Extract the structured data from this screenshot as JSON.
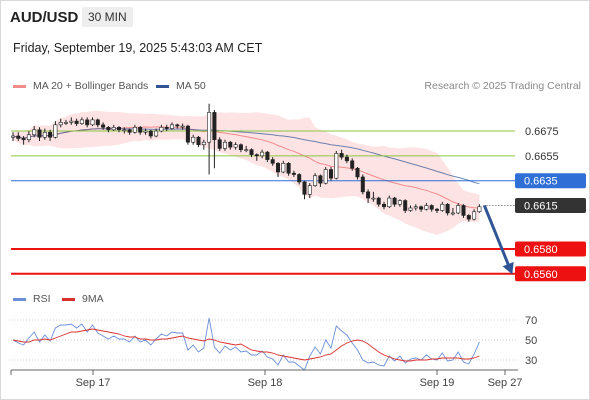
{
  "header": {
    "pair": "AUD/USD",
    "timeframe": "30 MIN",
    "datetime": "Friday, September 19, 2025 5:43:03 AM CET"
  },
  "legend": {
    "ma20_label": "MA 20 + Bollinger Bands",
    "ma50_label": "MA 50",
    "credit": "Research © 2025 Trading Central",
    "rsi_label": "RSI",
    "rsi_ma_label": "9MA"
  },
  "colors": {
    "ma20": "#f28c8c",
    "ma50": "#2f5597",
    "bollinger": "#fddede",
    "resistance_line": "#8cc63f",
    "pivot_line": "#2f6fd6",
    "support_line": "#ee1111",
    "current_price_tag": "#333333",
    "rsi": "#6b8fd6",
    "rsi_ma": "#d9302c"
  },
  "chart_data": [
    {
      "type": "candlestick",
      "title": "AUD/USD",
      "timeframe": "30 MIN",
      "x_tick_labels": [
        "Sep 17",
        "Sep 18",
        "Sep 19",
        "Sep 27"
      ],
      "ylim": [
        0.6555,
        0.67
      ],
      "levels": [
        {
          "price": 0.6675,
          "label": "0.6675",
          "kind": "resistance"
        },
        {
          "price": 0.6655,
          "label": "0.6655",
          "kind": "resistance"
        },
        {
          "price": 0.6635,
          "label": "0.6635",
          "kind": "pivot"
        },
        {
          "price": 0.6615,
          "label": "0.6615",
          "kind": "current"
        },
        {
          "price": 0.658,
          "label": "0.6580",
          "kind": "support"
        },
        {
          "price": 0.656,
          "label": "0.6560",
          "kind": "support"
        }
      ],
      "close": [
        0.6671,
        0.6669,
        0.6668,
        0.6672,
        0.6676,
        0.667,
        0.6674,
        0.667,
        0.668,
        0.6682,
        0.6682,
        0.6683,
        0.6681,
        0.6684,
        0.668,
        0.6684,
        0.668,
        0.6678,
        0.6676,
        0.6678,
        0.6676,
        0.6676,
        0.6674,
        0.6678,
        0.6674,
        0.6675,
        0.6671,
        0.6675,
        0.6678,
        0.6677,
        0.668,
        0.6679,
        0.6679,
        0.6666,
        0.667,
        0.6664,
        0.6666,
        0.669,
        0.6668,
        0.6661,
        0.6666,
        0.6662,
        0.6664,
        0.666,
        0.666,
        0.6656,
        0.6655,
        0.6658,
        0.6652,
        0.6649,
        0.6642,
        0.6649,
        0.6641,
        0.664,
        0.6634,
        0.6624,
        0.6631,
        0.6639,
        0.6633,
        0.6644,
        0.6637,
        0.6657,
        0.6654,
        0.6651,
        0.6645,
        0.6638,
        0.6626,
        0.6621,
        0.6621,
        0.6616,
        0.6614,
        0.6621,
        0.6616,
        0.6619,
        0.6611,
        0.6613,
        0.6614,
        0.6612,
        0.6615,
        0.6612,
        0.6611,
        0.6616,
        0.6609,
        0.6609,
        0.6615,
        0.6607,
        0.6604,
        0.661,
        0.6614
      ],
      "prices": [
        [
          0.667,
          0.6674,
          0.6667,
          0.6671
        ],
        [
          0.6671,
          0.6674,
          0.6667,
          0.6669
        ],
        [
          0.6669,
          0.6671,
          0.6664,
          0.6668
        ],
        [
          0.6668,
          0.6675,
          0.6666,
          0.6672
        ],
        [
          0.6672,
          0.6679,
          0.667,
          0.6676
        ],
        [
          0.6676,
          0.6678,
          0.6667,
          0.667
        ],
        [
          0.667,
          0.6677,
          0.6668,
          0.6674
        ],
        [
          0.6674,
          0.6676,
          0.6667,
          0.667
        ],
        [
          0.667,
          0.6683,
          0.6669,
          0.668
        ],
        [
          0.668,
          0.6685,
          0.6678,
          0.6682
        ],
        [
          0.6682,
          0.6684,
          0.668,
          0.6682
        ],
        [
          0.6682,
          0.6686,
          0.668,
          0.6683
        ],
        [
          0.6683,
          0.6685,
          0.6679,
          0.6681
        ],
        [
          0.6681,
          0.6686,
          0.668,
          0.6684
        ],
        [
          0.6684,
          0.6686,
          0.6678,
          0.668
        ],
        [
          0.668,
          0.6686,
          0.6679,
          0.6684
        ],
        [
          0.6684,
          0.6685,
          0.6678,
          0.668
        ],
        [
          0.668,
          0.6682,
          0.6676,
          0.6678
        ],
        [
          0.6678,
          0.6679,
          0.6674,
          0.6676
        ],
        [
          0.6676,
          0.668,
          0.6675,
          0.6678
        ],
        [
          0.6678,
          0.6679,
          0.6674,
          0.6676
        ],
        [
          0.6676,
          0.6678,
          0.6673,
          0.6676
        ],
        [
          0.6676,
          0.6677,
          0.6672,
          0.6674
        ],
        [
          0.6674,
          0.668,
          0.6673,
          0.6678
        ],
        [
          0.6678,
          0.6679,
          0.6672,
          0.6674
        ],
        [
          0.6674,
          0.6677,
          0.6672,
          0.6675
        ],
        [
          0.6675,
          0.6676,
          0.6669,
          0.6671
        ],
        [
          0.6671,
          0.6677,
          0.667,
          0.6675
        ],
        [
          0.6675,
          0.668,
          0.6674,
          0.6678
        ],
        [
          0.6678,
          0.668,
          0.6675,
          0.6677
        ],
        [
          0.6677,
          0.6682,
          0.6676,
          0.668
        ],
        [
          0.668,
          0.6681,
          0.6677,
          0.6679
        ],
        [
          0.6679,
          0.6681,
          0.6676,
          0.6679
        ],
        [
          0.6679,
          0.668,
          0.6664,
          0.6666
        ],
        [
          0.6666,
          0.6672,
          0.6664,
          0.667
        ],
        [
          0.667,
          0.6671,
          0.6662,
          0.6664
        ],
        [
          0.6664,
          0.6668,
          0.666,
          0.6666
        ],
        [
          0.6666,
          0.6697,
          0.664,
          0.669
        ],
        [
          0.669,
          0.6692,
          0.6645,
          0.6668
        ],
        [
          0.6668,
          0.667,
          0.6659,
          0.6661
        ],
        [
          0.6661,
          0.6668,
          0.6659,
          0.6666
        ],
        [
          0.6666,
          0.6667,
          0.666,
          0.6662
        ],
        [
          0.6662,
          0.6666,
          0.666,
          0.6664
        ],
        [
          0.6664,
          0.6665,
          0.6658,
          0.666
        ],
        [
          0.666,
          0.6663,
          0.6658,
          0.666
        ],
        [
          0.666,
          0.6661,
          0.6654,
          0.6656
        ],
        [
          0.6656,
          0.6657,
          0.6651,
          0.6655
        ],
        [
          0.6655,
          0.666,
          0.6653,
          0.6658
        ],
        [
          0.6658,
          0.6659,
          0.665,
          0.6652
        ],
        [
          0.6652,
          0.6654,
          0.6647,
          0.6649
        ],
        [
          0.6649,
          0.665,
          0.6638,
          0.6642
        ],
        [
          0.6642,
          0.6651,
          0.6641,
          0.6649
        ],
        [
          0.6649,
          0.665,
          0.6639,
          0.6641
        ],
        [
          0.6641,
          0.6643,
          0.6638,
          0.664
        ],
        [
          0.664,
          0.6641,
          0.6632,
          0.6634
        ],
        [
          0.6634,
          0.6635,
          0.662,
          0.6624
        ],
        [
          0.6624,
          0.6633,
          0.6621,
          0.6631
        ],
        [
          0.6631,
          0.6641,
          0.663,
          0.6639
        ],
        [
          0.6639,
          0.664,
          0.663,
          0.6633
        ],
        [
          0.6633,
          0.6646,
          0.6632,
          0.6644
        ],
        [
          0.6644,
          0.6646,
          0.6635,
          0.6637
        ],
        [
          0.6637,
          0.6659,
          0.6636,
          0.6657
        ],
        [
          0.6657,
          0.666,
          0.6652,
          0.6654
        ],
        [
          0.6654,
          0.6656,
          0.6649,
          0.6651
        ],
        [
          0.6651,
          0.6653,
          0.6643,
          0.6645
        ],
        [
          0.6645,
          0.6646,
          0.6636,
          0.6638
        ],
        [
          0.6638,
          0.664,
          0.6624,
          0.6626
        ],
        [
          0.6626,
          0.6628,
          0.6617,
          0.6621
        ],
        [
          0.6621,
          0.6626,
          0.6618,
          0.6621
        ],
        [
          0.6621,
          0.6622,
          0.6614,
          0.6616
        ],
        [
          0.6616,
          0.6618,
          0.6612,
          0.6614
        ],
        [
          0.6614,
          0.6623,
          0.6613,
          0.6621
        ],
        [
          0.6621,
          0.6622,
          0.6614,
          0.6616
        ],
        [
          0.6616,
          0.662,
          0.6614,
          0.6619
        ],
        [
          0.6619,
          0.662,
          0.6609,
          0.6611
        ],
        [
          0.6611,
          0.6615,
          0.661,
          0.6613
        ],
        [
          0.6613,
          0.6616,
          0.6611,
          0.6614
        ],
        [
          0.6614,
          0.6615,
          0.661,
          0.6612
        ],
        [
          0.6612,
          0.6617,
          0.6611,
          0.6615
        ],
        [
          0.6615,
          0.6616,
          0.661,
          0.6612
        ],
        [
          0.6612,
          0.6613,
          0.6609,
          0.6611
        ],
        [
          0.6611,
          0.6618,
          0.661,
          0.6616
        ],
        [
          0.6616,
          0.6617,
          0.6607,
          0.6609
        ],
        [
          0.6609,
          0.6613,
          0.6607,
          0.6609
        ],
        [
          0.6609,
          0.6617,
          0.6608,
          0.6615
        ],
        [
          0.6615,
          0.6616,
          0.6605,
          0.6607
        ],
        [
          0.6607,
          0.6608,
          0.6602,
          0.6604
        ],
        [
          0.6604,
          0.6612,
          0.6603,
          0.661
        ],
        [
          0.661,
          0.6616,
          0.6609,
          0.6614
        ]
      ],
      "forecast": {
        "from": 0.6615,
        "to": 0.656
      },
      "legend": [
        "MA 20 + Bollinger Bands",
        "MA 50"
      ],
      "grid": false
    },
    {
      "type": "line",
      "series": [
        {
          "name": "RSI"
        },
        {
          "name": "9MA"
        }
      ],
      "y_tick_labels": [
        "70",
        "50",
        "30"
      ],
      "ylim": [
        22,
        78
      ],
      "rsi": [
        50,
        47,
        45,
        52,
        58,
        48,
        55,
        49,
        62,
        65,
        65,
        66,
        62,
        66,
        58,
        65,
        57,
        54,
        51,
        54,
        51,
        51,
        48,
        54,
        48,
        50,
        45,
        51,
        56,
        54,
        58,
        57,
        57,
        40,
        45,
        38,
        42,
        72,
        43,
        37,
        44,
        40,
        43,
        38,
        39,
        35,
        35,
        39,
        33,
        31,
        25,
        35,
        28,
        28,
        24,
        20,
        34,
        43,
        36,
        50,
        42,
        64,
        59,
        55,
        47,
        40,
        30,
        27,
        28,
        25,
        24,
        34,
        29,
        34,
        27,
        31,
        32,
        30,
        35,
        31,
        30,
        37,
        29,
        30,
        38,
        28,
        26,
        36,
        48
      ],
      "rsi_ma": [
        50,
        49,
        48,
        48,
        50,
        50,
        51,
        50,
        52,
        54,
        56,
        58,
        58,
        59,
        60,
        61,
        60,
        59,
        58,
        57,
        56,
        54,
        53,
        53,
        51,
        51,
        50,
        50,
        51,
        51,
        52,
        53,
        54,
        52,
        51,
        50,
        49,
        51,
        50,
        48,
        47,
        46,
        45,
        46,
        43,
        40,
        39,
        38,
        38,
        37,
        35,
        34,
        33,
        32,
        31,
        30,
        31,
        32,
        33,
        35,
        36,
        40,
        44,
        47,
        49,
        50,
        49,
        46,
        42,
        38,
        35,
        33,
        31,
        30,
        29,
        29,
        30,
        30,
        30,
        31,
        31,
        32,
        32,
        32,
        32,
        31,
        31,
        32,
        34
      ],
      "legend": [
        "RSI",
        "9MA"
      ]
    }
  ]
}
